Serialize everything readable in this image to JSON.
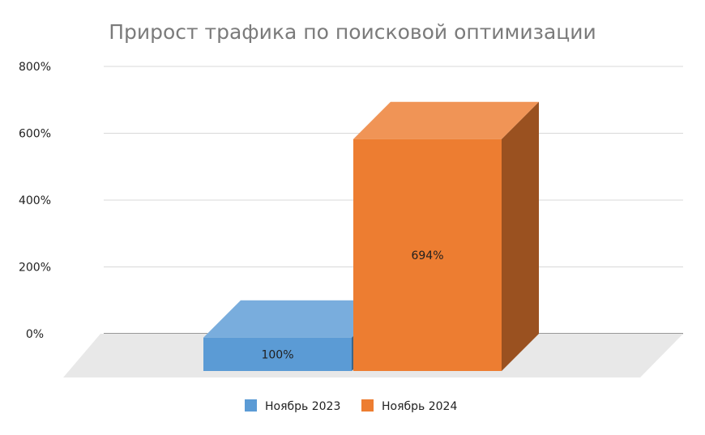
{
  "chart_data": {
    "type": "bar",
    "title": "Прирост трафика по поисковой оптимизации",
    "xlabel": "",
    "ylabel": "",
    "ylim": [
      0,
      800
    ],
    "y_ticks": [
      0,
      200,
      400,
      600,
      800
    ],
    "y_tick_suffix": "%",
    "grid": true,
    "three_d": true,
    "legend_position": "bottom",
    "series": [
      {
        "name": "Ноябрь 2023",
        "value": 100,
        "label": "100%",
        "color": "#5b9bd5"
      },
      {
        "name": "Ноябрь 2024",
        "value": 694,
        "label": "694%",
        "color": "#ed7d31"
      }
    ]
  }
}
